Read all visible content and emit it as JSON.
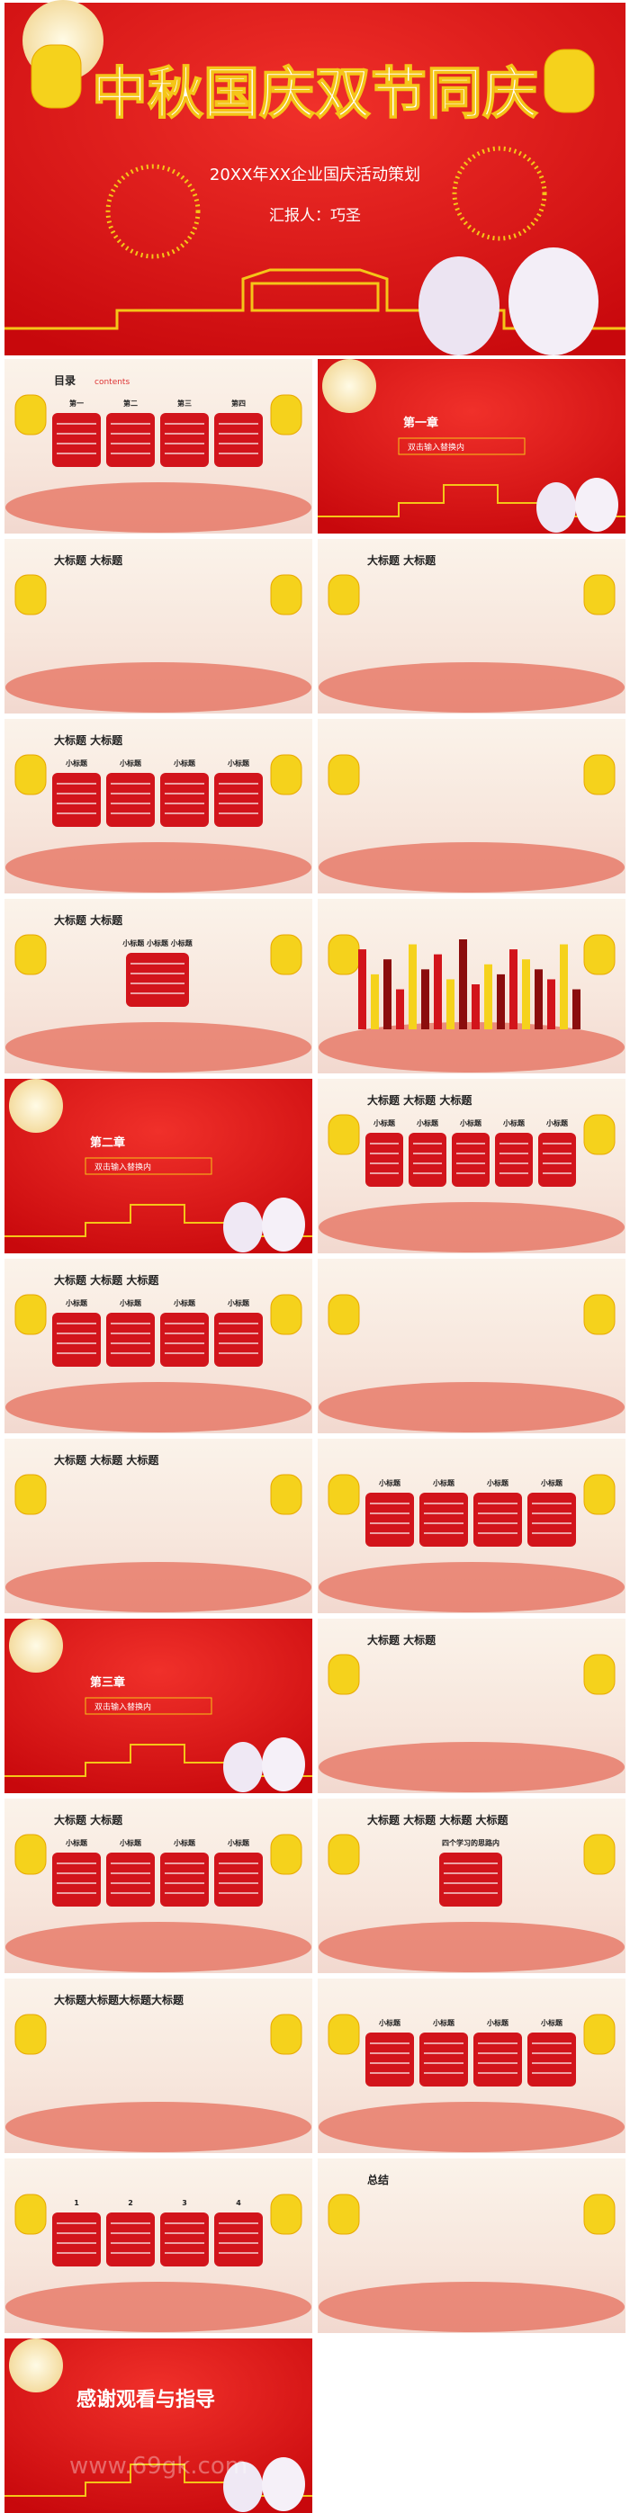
{
  "cover": {
    "title": "中秋国庆双节同庆",
    "subtitle": "20XX年XX企业国庆活动策划",
    "reporter": "汇报人：巧圣"
  },
  "slides": [
    {
      "style": "light",
      "title": "目录",
      "subtitle": "contents",
      "texts": [
        "第一",
        "第二",
        "第三",
        "第四"
      ]
    },
    {
      "style": "red",
      "title": "第一章",
      "texts": [
        "双击输入替换内"
      ]
    },
    {
      "style": "light",
      "title": "大标题 大标题",
      "texts": []
    },
    {
      "style": "light",
      "title": "大标题 大标题",
      "texts": []
    },
    {
      "style": "light",
      "title": "大标题 大标题",
      "texts": [
        "小标题",
        "小标题",
        "小标题",
        "小标题"
      ]
    },
    {
      "style": "light",
      "title": "",
      "texts": []
    },
    {
      "style": "light",
      "title": "大标题 大标题",
      "texts": [
        "小标题 小标题 小标题"
      ]
    },
    {
      "style": "light",
      "title": "",
      "texts": [],
      "bars": [
        80,
        55,
        70,
        40,
        85,
        60,
        75,
        50,
        90,
        45,
        65,
        55,
        80,
        70,
        60,
        50,
        85,
        40
      ]
    },
    {
      "style": "red",
      "title": "第二章",
      "texts": [
        "双击输入替换内"
      ]
    },
    {
      "style": "light",
      "title": "大标题 大标题 大标题",
      "texts": [
        "小标题",
        "小标题",
        "小标题",
        "小标题",
        "小标题"
      ]
    },
    {
      "style": "light",
      "title": "大标题 大标题 大标题",
      "texts": [
        "小标题",
        "小标题",
        "小标题",
        "小标题"
      ]
    },
    {
      "style": "light",
      "title": "",
      "texts": []
    },
    {
      "style": "light",
      "title": "大标题 大标题 大标题",
      "texts": []
    },
    {
      "style": "light",
      "title": "",
      "texts": [
        "小标题",
        "小标题",
        "小标题",
        "小标题"
      ]
    },
    {
      "style": "red",
      "title": "第三章",
      "texts": [
        "双击输入替换内"
      ]
    },
    {
      "style": "light",
      "title": "大标题 大标题",
      "texts": []
    },
    {
      "style": "light",
      "title": "大标题 大标题",
      "texts": [
        "小标题",
        "小标题",
        "小标题",
        "小标题"
      ]
    },
    {
      "style": "light",
      "title": "大标题 大标题 大标题 大标题",
      "texts": [
        "四个学习的思路内"
      ]
    },
    {
      "style": "light",
      "title": "大标题大标题大标题大标题",
      "texts": []
    },
    {
      "style": "light",
      "title": "",
      "texts": [
        "小标题",
        "小标题",
        "小标题",
        "小标题"
      ]
    },
    {
      "style": "light",
      "title": "",
      "texts": [
        "1",
        "2",
        "3",
        "4"
      ]
    },
    {
      "style": "light",
      "title": "总结",
      "texts": []
    },
    {
      "style": "red",
      "title": "感谢观看与指导",
      "texts": [],
      "watermark": "www.69gk.com"
    }
  ]
}
